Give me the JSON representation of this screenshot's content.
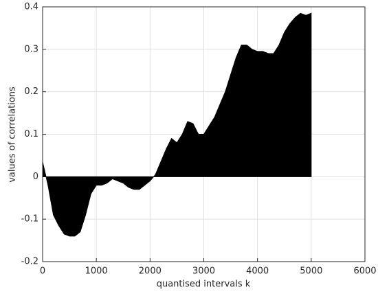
{
  "chart_data": {
    "type": "area",
    "xlabel": "quantised intervals k",
    "ylabel": "values of correlations",
    "color": "#000000",
    "grid": true,
    "xlim": [
      0,
      6000
    ],
    "xticks": [
      0,
      1000,
      2000,
      3000,
      4000,
      5000,
      6000
    ],
    "ylim": [
      -0.2,
      0.4
    ],
    "yticks": [
      -0.2,
      -0.1,
      0,
      0.1,
      0.2,
      0.3,
      0.4
    ],
    "x": [
      0,
      100,
      200,
      300,
      400,
      500,
      600,
      700,
      800,
      900,
      1000,
      1100,
      1200,
      1300,
      1400,
      1500,
      1600,
      1700,
      1800,
      1900,
      2000,
      2100,
      2200,
      2300,
      2400,
      2500,
      2600,
      2700,
      2800,
      2900,
      3000,
      3100,
      3200,
      3300,
      3400,
      3500,
      3600,
      3700,
      3800,
      3900,
      4000,
      4100,
      4200,
      4300,
      4400,
      4500,
      4600,
      4700,
      4800,
      4900,
      5000
    ],
    "values": [
      0.035,
      -0.02,
      -0.09,
      -0.115,
      -0.135,
      -0.14,
      -0.14,
      -0.13,
      -0.09,
      -0.04,
      -0.02,
      -0.02,
      -0.015,
      -0.005,
      -0.01,
      -0.015,
      -0.025,
      -0.03,
      -0.03,
      -0.02,
      -0.01,
      0.005,
      0.035,
      0.065,
      0.09,
      0.08,
      0.1,
      0.13,
      0.125,
      0.1,
      0.1,
      0.12,
      0.14,
      0.17,
      0.2,
      0.24,
      0.28,
      0.31,
      0.31,
      0.3,
      0.295,
      0.295,
      0.29,
      0.29,
      0.31,
      0.34,
      0.36,
      0.375,
      0.385,
      0.38,
      0.385
    ]
  }
}
